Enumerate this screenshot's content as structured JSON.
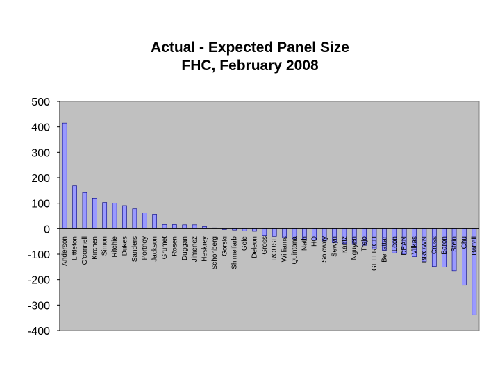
{
  "chart_data": {
    "type": "bar",
    "title": "Actual - Expected Panel Size",
    "subtitle": "FHC, February 2008",
    "xlabel": "",
    "ylabel": "",
    "ylim": [
      -400,
      500
    ],
    "yticks": [
      500,
      400,
      300,
      200,
      100,
      0,
      -100,
      -200,
      -300,
      -400
    ],
    "grid": false,
    "legend": "none",
    "colors": {
      "plot_bg": "#c0c0c0",
      "bar_fill": "#9999ff",
      "bar_stroke": "#000080",
      "axis": "#808080"
    },
    "categories": [
      "Anderson",
      "Littleton",
      "O'connell",
      "Kirchen",
      "Simon",
      "Ritchie",
      "Dukes",
      "Sanders",
      "Portnoy",
      "Jackson",
      "Grumet",
      "Rosen",
      "Duggan",
      "Jimenez",
      "Heskrey",
      "Schonberg",
      "Gorski",
      "Shimelfarb",
      "Gole",
      "Deleon",
      "Gross",
      "ROUSE",
      "Williams",
      "Quintana",
      "Nath",
      "HO",
      "Soloway",
      "Sewyn",
      "Kantz",
      "Nguyen",
      "Trejo",
      "GELLRICH",
      "Benattar",
      "Leon",
      "DEAN",
      "Vilkas",
      "BROWN",
      "Cross",
      "Baron",
      "Stein",
      "Chu",
      "Battell"
    ],
    "values": [
      415,
      168,
      142,
      120,
      103,
      100,
      91,
      78,
      62,
      57,
      16,
      16,
      15,
      15,
      8,
      3,
      -3,
      -5,
      -8,
      -10,
      -28,
      -30,
      -35,
      -40,
      -42,
      -45,
      -48,
      -55,
      -58,
      -62,
      -65,
      -80,
      -85,
      -95,
      -100,
      -110,
      -130,
      -148,
      -150,
      -165,
      -222,
      -338
    ]
  }
}
